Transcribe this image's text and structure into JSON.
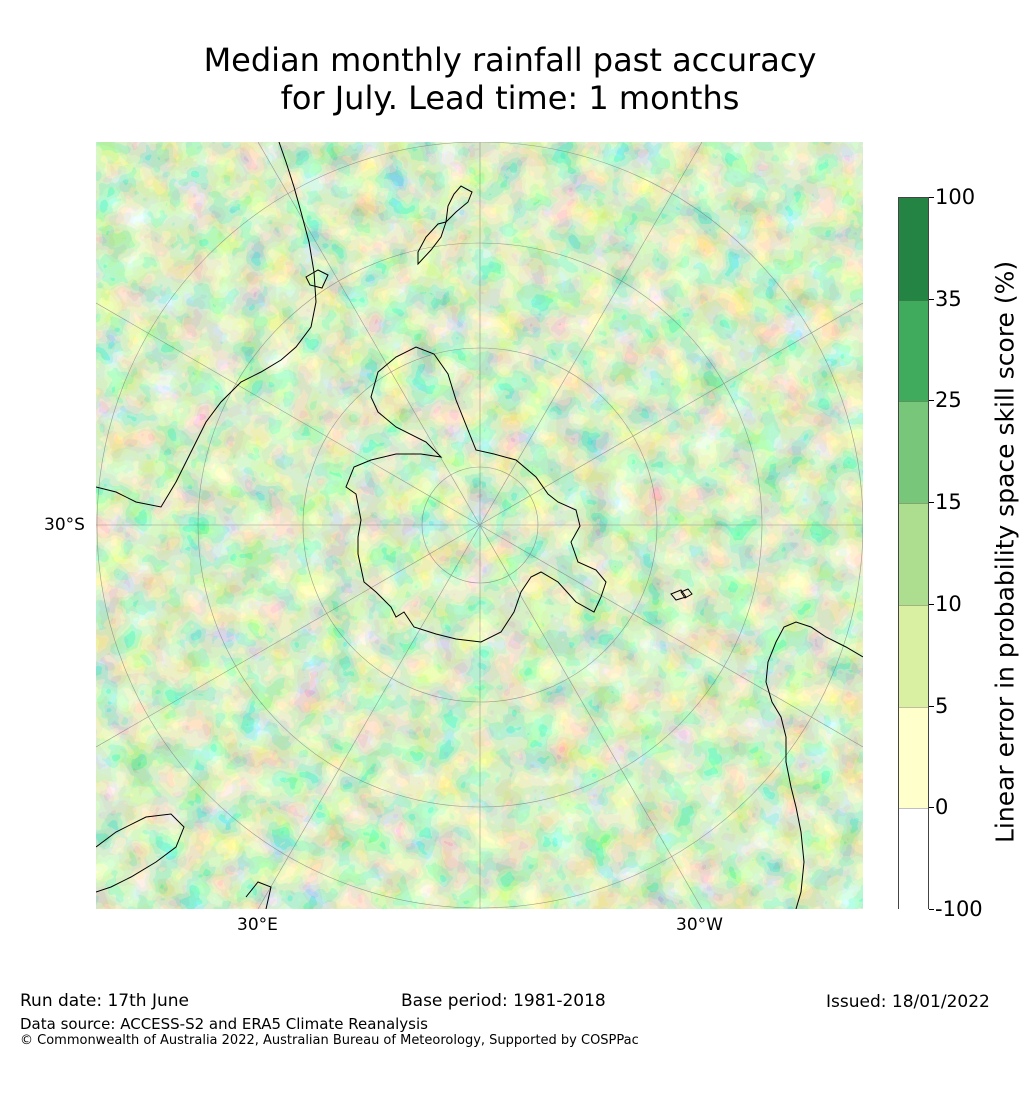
{
  "title": {
    "line1": "Median monthly rainfall past accuracy",
    "line2": "for July. Lead time: 1 months"
  },
  "map": {
    "projection": "south-polar-stereographic",
    "longitude_labels": {
      "left": "30°E",
      "right": "30°W"
    },
    "latitude_label": "30°S"
  },
  "colorbar": {
    "label": "Linear error in probability space skill score (%)",
    "ticks": [
      "100",
      "35",
      "25",
      "15",
      "10",
      "5",
      "0",
      "-100"
    ],
    "bins": [
      {
        "from": "35",
        "to": "100",
        "color": "#238443"
      },
      {
        "from": "25",
        "to": "35",
        "color": "#41ab5d"
      },
      {
        "from": "15",
        "to": "25",
        "color": "#78c679"
      },
      {
        "from": "10",
        "to": "15",
        "color": "#addd8e"
      },
      {
        "from": "5",
        "to": "10",
        "color": "#d9f0a3"
      },
      {
        "from": "0",
        "to": "5",
        "color": "#ffffcc"
      },
      {
        "from": "-100",
        "to": "0",
        "color": "#ffffff"
      }
    ]
  },
  "footer": {
    "run_date": "Run date: 17th June",
    "base_period": "Base period: 1981-2018",
    "issued": "Issued: 18/01/2022",
    "data_source": "Data source: ACCESS-S2 and ERA5 Climate Reanalysis",
    "copyright": "© Commonwealth of Australia 2022, Australian Bureau of Meteorology, Supported by COSPPac"
  }
}
